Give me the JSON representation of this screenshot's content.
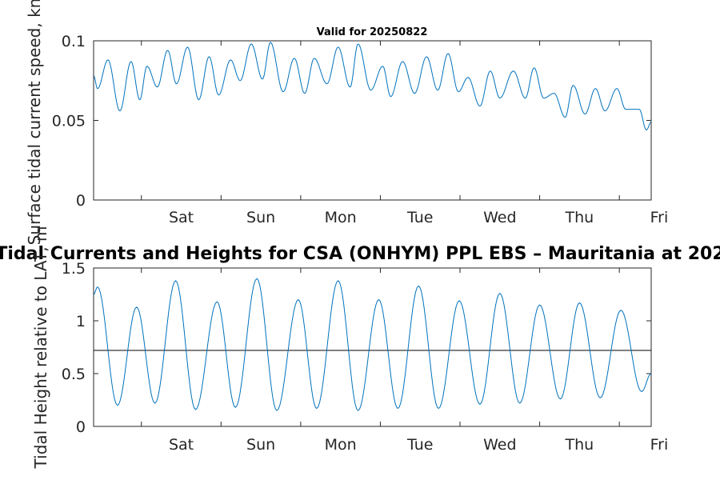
{
  "chart_data": [
    {
      "type": "line",
      "title": "Valid for 20250822",
      "ylabel": "Surface tidal current speed, kn",
      "ylim": [
        0,
        0.1
      ],
      "yticks": [
        "0",
        "0.05",
        "0.1"
      ],
      "xlim": [
        -0.6,
        6.4
      ],
      "xtick_labels": [
        "Sat",
        "Sun",
        "Mon",
        "Tue",
        "Wed",
        "Thu",
        "Fri"
      ],
      "color": "#0072BD",
      "series": [
        {
          "x": [
            -0.6,
            -0.55,
            -0.42,
            -0.27,
            -0.13,
            -0.02,
            0.07,
            0.2,
            0.33,
            0.44,
            0.58,
            0.72,
            0.85,
            0.97,
            1.12,
            1.24,
            1.38,
            1.52,
            1.62,
            1.78,
            1.92,
            2.05,
            2.17,
            2.33,
            2.47,
            2.62,
            2.72,
            2.88,
            3.03,
            3.13,
            3.28,
            3.43,
            3.58,
            3.72,
            3.85,
            3.98,
            4.1,
            4.25,
            4.38,
            4.5,
            4.67,
            4.82,
            4.93,
            5.05,
            5.18,
            5.32,
            5.42,
            5.57,
            5.7,
            5.82,
            5.97,
            6.08,
            6.25,
            6.34,
            6.4
          ],
          "y": [
            0.078,
            0.07,
            0.088,
            0.056,
            0.087,
            0.063,
            0.084,
            0.071,
            0.094,
            0.073,
            0.096,
            0.063,
            0.09,
            0.066,
            0.088,
            0.075,
            0.098,
            0.076,
            0.099,
            0.068,
            0.089,
            0.067,
            0.089,
            0.073,
            0.096,
            0.071,
            0.098,
            0.069,
            0.084,
            0.065,
            0.087,
            0.067,
            0.09,
            0.069,
            0.092,
            0.068,
            0.077,
            0.059,
            0.081,
            0.064,
            0.081,
            0.064,
            0.083,
            0.064,
            0.067,
            0.052,
            0.072,
            0.054,
            0.07,
            0.056,
            0.07,
            0.057,
            0.057,
            0.044,
            0.049
          ]
        }
      ]
    },
    {
      "type": "line",
      "title": "Tidal Currents and Heights for CSA (ONHYM) PPL EBS  – Mauritania at 202",
      "ylabel": "Tidal Height relative to LAT, m",
      "ylim": [
        0,
        1.5
      ],
      "yticks": [
        "0",
        "0.5",
        "1",
        "1.5"
      ],
      "xlim": [
        -0.6,
        6.4
      ],
      "xtick_labels": [
        "Sat",
        "Sun",
        "Mon",
        "Tue",
        "Wed",
        "Thu",
        "Fri"
      ],
      "reference_line": 0.72,
      "color": "#0072BD",
      "series": [
        {
          "x": [
            -0.6,
            -0.55,
            -0.3,
            -0.06,
            0.17,
            0.43,
            0.68,
            0.95,
            1.18,
            1.45,
            1.7,
            1.97,
            2.2,
            2.47,
            2.72,
            2.98,
            3.22,
            3.48,
            3.73,
            3.99,
            4.25,
            4.5,
            4.75,
            5.0,
            5.26,
            5.5,
            5.76,
            6.02,
            6.28,
            6.4
          ],
          "y": [
            1.25,
            1.32,
            0.2,
            1.13,
            0.22,
            1.38,
            0.16,
            1.18,
            0.18,
            1.4,
            0.15,
            1.2,
            0.17,
            1.38,
            0.15,
            1.2,
            0.17,
            1.33,
            0.17,
            1.19,
            0.21,
            1.26,
            0.22,
            1.15,
            0.26,
            1.17,
            0.27,
            1.1,
            0.33,
            0.5
          ]
        }
      ]
    }
  ]
}
